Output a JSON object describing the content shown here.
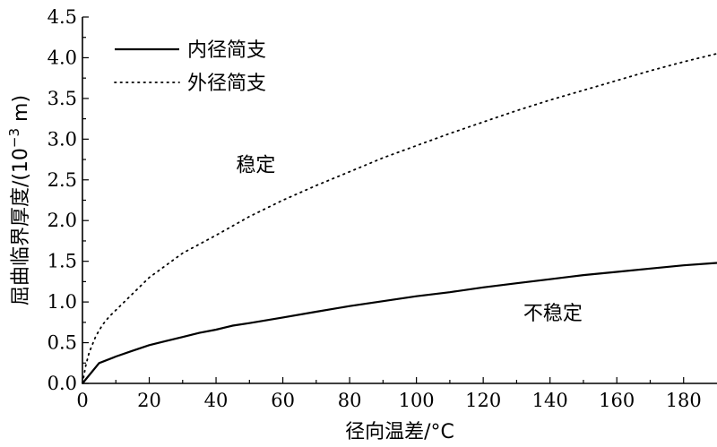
{
  "chart_data": {
    "type": "line",
    "xlabel": "径向温差/°C",
    "ylabel": "屈曲临界厚度/(10",
    "ylabel_exponent": "−3",
    "ylabel_suffix": " m)",
    "xlim": [
      0,
      190
    ],
    "ylim": [
      0,
      4.5
    ],
    "xticks": [
      0,
      20,
      40,
      60,
      80,
      100,
      120,
      140,
      160,
      180
    ],
    "yticks": [
      0.0,
      0.5,
      1.0,
      1.5,
      2.0,
      2.5,
      3.0,
      3.5,
      4.0,
      4.5
    ],
    "xtick_labels": [
      "0",
      "20",
      "40",
      "60",
      "80",
      "100",
      "120",
      "140",
      "160",
      "180"
    ],
    "ytick_labels": [
      "0.0",
      "0.5",
      "1.0",
      "1.5",
      "2.0",
      "2.5",
      "3.0",
      "3.5",
      "4.0",
      "4.5"
    ],
    "series": [
      {
        "name": "内径简支",
        "style": "solid",
        "x": [
          0,
          5,
          10,
          15,
          20,
          25,
          30,
          35,
          40,
          45,
          50,
          60,
          70,
          80,
          90,
          100,
          110,
          120,
          130,
          140,
          150,
          160,
          170,
          180,
          190
        ],
        "y": [
          0.0,
          0.25,
          0.33,
          0.4,
          0.47,
          0.52,
          0.57,
          0.62,
          0.66,
          0.71,
          0.74,
          0.81,
          0.88,
          0.95,
          1.01,
          1.07,
          1.12,
          1.18,
          1.23,
          1.28,
          1.33,
          1.37,
          1.41,
          1.45,
          1.48
        ]
      },
      {
        "name": "外径简支",
        "style": "dotted",
        "x": [
          0,
          1,
          2,
          4,
          6,
          8,
          10,
          15,
          20,
          25,
          30,
          40,
          50,
          60,
          70,
          80,
          90,
          100,
          110,
          120,
          130,
          140,
          150,
          160,
          170,
          180,
          190
        ],
        "y": [
          0.0,
          0.22,
          0.38,
          0.58,
          0.72,
          0.82,
          0.9,
          1.1,
          1.3,
          1.45,
          1.6,
          1.82,
          2.05,
          2.25,
          2.43,
          2.6,
          2.77,
          2.92,
          3.07,
          3.21,
          3.35,
          3.48,
          3.6,
          3.72,
          3.84,
          3.95,
          4.05
        ]
      }
    ],
    "annotations": [
      {
        "text": "稳定",
        "x": 46,
        "y": 2.6
      },
      {
        "text": "不稳定",
        "x": 132,
        "y": 0.78
      }
    ],
    "legend": "top-left",
    "grid": false
  }
}
